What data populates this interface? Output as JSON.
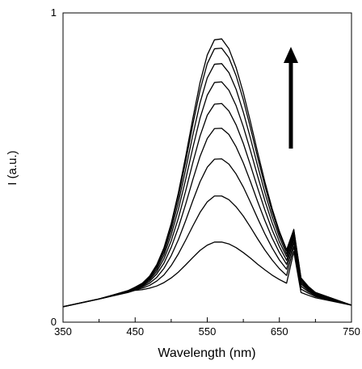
{
  "chart_data": {
    "type": "line",
    "xlabel": "Wavelength (nm)",
    "ylabel": "I (a.u.)",
    "xlim": [
      350,
      750
    ],
    "ylim": [
      0,
      1
    ],
    "xticks": [
      350,
      450,
      550,
      650,
      750
    ],
    "x_minor_ticks": [
      400,
      500,
      600,
      700
    ],
    "yticks": [
      0,
      1
    ],
    "grid": false,
    "x": [
      350,
      400,
      440,
      450,
      460,
      470,
      480,
      490,
      500,
      510,
      520,
      530,
      540,
      550,
      560,
      570,
      580,
      590,
      600,
      610,
      620,
      630,
      640,
      650,
      660,
      670,
      680,
      690,
      700,
      750
    ],
    "series": [
      {
        "color": "#000000",
        "values": [
          0.05,
          0.075,
          0.096,
          0.103,
          0.105,
          0.11,
          0.117,
          0.128,
          0.143,
          0.162,
          0.185,
          0.209,
          0.232,
          0.249,
          0.259,
          0.259,
          0.253,
          0.241,
          0.225,
          0.207,
          0.187,
          0.169,
          0.152,
          0.138,
          0.126,
          0.228,
          0.096,
          0.087,
          0.079,
          0.055
        ]
      },
      {
        "color": "#000000",
        "values": [
          0.05,
          0.075,
          0.097,
          0.105,
          0.11,
          0.119,
          0.133,
          0.153,
          0.183,
          0.221,
          0.265,
          0.311,
          0.355,
          0.389,
          0.408,
          0.408,
          0.396,
          0.373,
          0.343,
          0.307,
          0.269,
          0.233,
          0.201,
          0.173,
          0.151,
          0.244,
          0.107,
          0.094,
          0.083,
          0.055
        ]
      },
      {
        "color": "#000000",
        "values": [
          0.05,
          0.075,
          0.098,
          0.107,
          0.114,
          0.126,
          0.145,
          0.174,
          0.215,
          0.267,
          0.328,
          0.393,
          0.454,
          0.501,
          0.527,
          0.528,
          0.511,
          0.479,
          0.437,
          0.387,
          0.335,
          0.285,
          0.24,
          0.201,
          0.171,
          0.257,
          0.116,
          0.099,
          0.086,
          0.055
        ]
      },
      {
        "color": "#000000",
        "values": [
          0.05,
          0.075,
          0.099,
          0.108,
          0.117,
          0.132,
          0.156,
          0.191,
          0.242,
          0.306,
          0.381,
          0.461,
          0.536,
          0.594,
          0.626,
          0.627,
          0.607,
          0.567,
          0.515,
          0.454,
          0.389,
          0.328,
          0.272,
          0.225,
          0.187,
          0.268,
          0.123,
          0.103,
          0.089,
          0.055
        ]
      },
      {
        "color": "#000000",
        "values": [
          0.05,
          0.075,
          0.1,
          0.11,
          0.12,
          0.137,
          0.164,
          0.205,
          0.263,
          0.337,
          0.424,
          0.516,
          0.602,
          0.669,
          0.705,
          0.707,
          0.683,
          0.638,
          0.578,
          0.507,
          0.433,
          0.362,
          0.298,
          0.244,
          0.2,
          0.277,
          0.128,
          0.107,
          0.091,
          0.055
        ]
      },
      {
        "color": "#000000",
        "values": [
          0.05,
          0.075,
          0.1,
          0.111,
          0.122,
          0.141,
          0.171,
          0.217,
          0.282,
          0.365,
          0.461,
          0.564,
          0.66,
          0.734,
          0.775,
          0.777,
          0.75,
          0.7,
          0.632,
          0.554,
          0.471,
          0.392,
          0.321,
          0.26,
          0.212,
          0.285,
          0.133,
          0.11,
          0.093,
          0.055
        ]
      },
      {
        "color": "#000000",
        "values": [
          0.05,
          0.075,
          0.101,
          0.112,
          0.124,
          0.144,
          0.178,
          0.227,
          0.298,
          0.388,
          0.493,
          0.605,
          0.709,
          0.79,
          0.834,
          0.836,
          0.807,
          0.753,
          0.679,
          0.594,
          0.504,
          0.418,
          0.341,
          0.275,
          0.221,
          0.291,
          0.138,
          0.113,
          0.094,
          0.055
        ]
      },
      {
        "color": "#000000",
        "values": [
          0.05,
          0.075,
          0.101,
          0.113,
          0.125,
          0.147,
          0.183,
          0.236,
          0.311,
          0.407,
          0.519,
          0.639,
          0.75,
          0.836,
          0.884,
          0.886,
          0.855,
          0.797,
          0.719,
          0.627,
          0.531,
          0.44,
          0.357,
          0.286,
          0.23,
          0.297,
          0.141,
          0.115,
          0.096,
          0.055
        ]
      },
      {
        "color": "#000000",
        "values": [
          0.05,
          0.075,
          0.102,
          0.113,
          0.126,
          0.149,
          0.186,
          0.241,
          0.319,
          0.419,
          0.535,
          0.659,
          0.775,
          0.864,
          0.913,
          0.916,
          0.884,
          0.823,
          0.742,
          0.647,
          0.548,
          0.453,
          0.367,
          0.294,
          0.234,
          0.3,
          0.143,
          0.116,
          0.096,
          0.055
        ]
      }
    ]
  }
}
